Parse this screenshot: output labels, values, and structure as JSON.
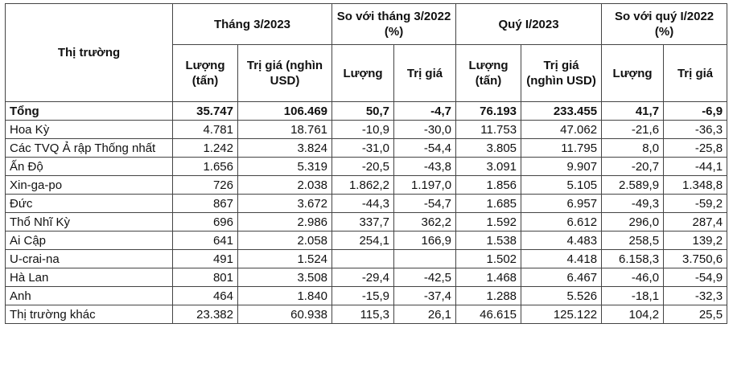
{
  "header": {
    "market": "Thị trường",
    "g1": "Tháng 3/2023",
    "g2": "So với tháng 3/2022 (%)",
    "g3": "Quý I/2023",
    "g4": "So với quý I/2022 (%)",
    "c1": "Lượng (tấn)",
    "c2": "Trị giá (nghìn USD)",
    "c3": "Lượng",
    "c4": "Trị giá",
    "c5": "Lượng (tấn)",
    "c6": "Trị giá (nghìn USD)",
    "c7": "Lượng",
    "c8": "Trị giá"
  },
  "rows": [
    {
      "market": "Tổng",
      "v": [
        "35.747",
        "106.469",
        "50,7",
        "-4,7",
        "76.193",
        "233.455",
        "41,7",
        "-6,9"
      ]
    },
    {
      "market": "Hoa Kỳ",
      "v": [
        "4.781",
        "18.761",
        "-10,9",
        "-30,0",
        "11.753",
        "47.062",
        "-21,6",
        "-36,3"
      ]
    },
    {
      "market": "Các TVQ Ả rập Thống nhất",
      "v": [
        "1.242",
        "3.824",
        "-31,0",
        "-54,4",
        "3.805",
        "11.795",
        "8,0",
        "-25,8"
      ]
    },
    {
      "market": "Ấn Độ",
      "v": [
        "1.656",
        "5.319",
        "-20,5",
        "-43,8",
        "3.091",
        "9.907",
        "-20,7",
        "-44,1"
      ]
    },
    {
      "market": "Xin-ga-po",
      "v": [
        "726",
        "2.038",
        "1.862,2",
        "1.197,0",
        "1.856",
        "5.105",
        "2.589,9",
        "1.348,8"
      ]
    },
    {
      "market": "Đức",
      "v": [
        "867",
        "3.672",
        "-44,3",
        "-54,7",
        "1.685",
        "6.957",
        "-49,3",
        "-59,2"
      ]
    },
    {
      "market": "Thổ Nhĩ Kỳ",
      "v": [
        "696",
        "2.986",
        "337,7",
        "362,2",
        "1.592",
        "6.612",
        "296,0",
        "287,4"
      ]
    },
    {
      "market": "Ai Cập",
      "v": [
        "641",
        "2.058",
        "254,1",
        "166,9",
        "1.538",
        "4.483",
        "258,5",
        "139,2"
      ]
    },
    {
      "market": "U-crai-na",
      "v": [
        "491",
        "1.524",
        "",
        "",
        "1.502",
        "4.418",
        "6.158,3",
        "3.750,6"
      ]
    },
    {
      "market": "Hà Lan",
      "v": [
        "801",
        "3.508",
        "-29,4",
        "-42,5",
        "1.468",
        "6.467",
        "-46,0",
        "-54,9"
      ]
    },
    {
      "market": "Anh",
      "v": [
        "464",
        "1.840",
        "-15,9",
        "-37,4",
        "1.288",
        "5.526",
        "-18,1",
        "-32,3"
      ]
    },
    {
      "market": "Thị trường khác",
      "v": [
        "23.382",
        "60.938",
        "115,3",
        "26,1",
        "46.615",
        "125.122",
        "104,2",
        "25,5"
      ]
    }
  ]
}
